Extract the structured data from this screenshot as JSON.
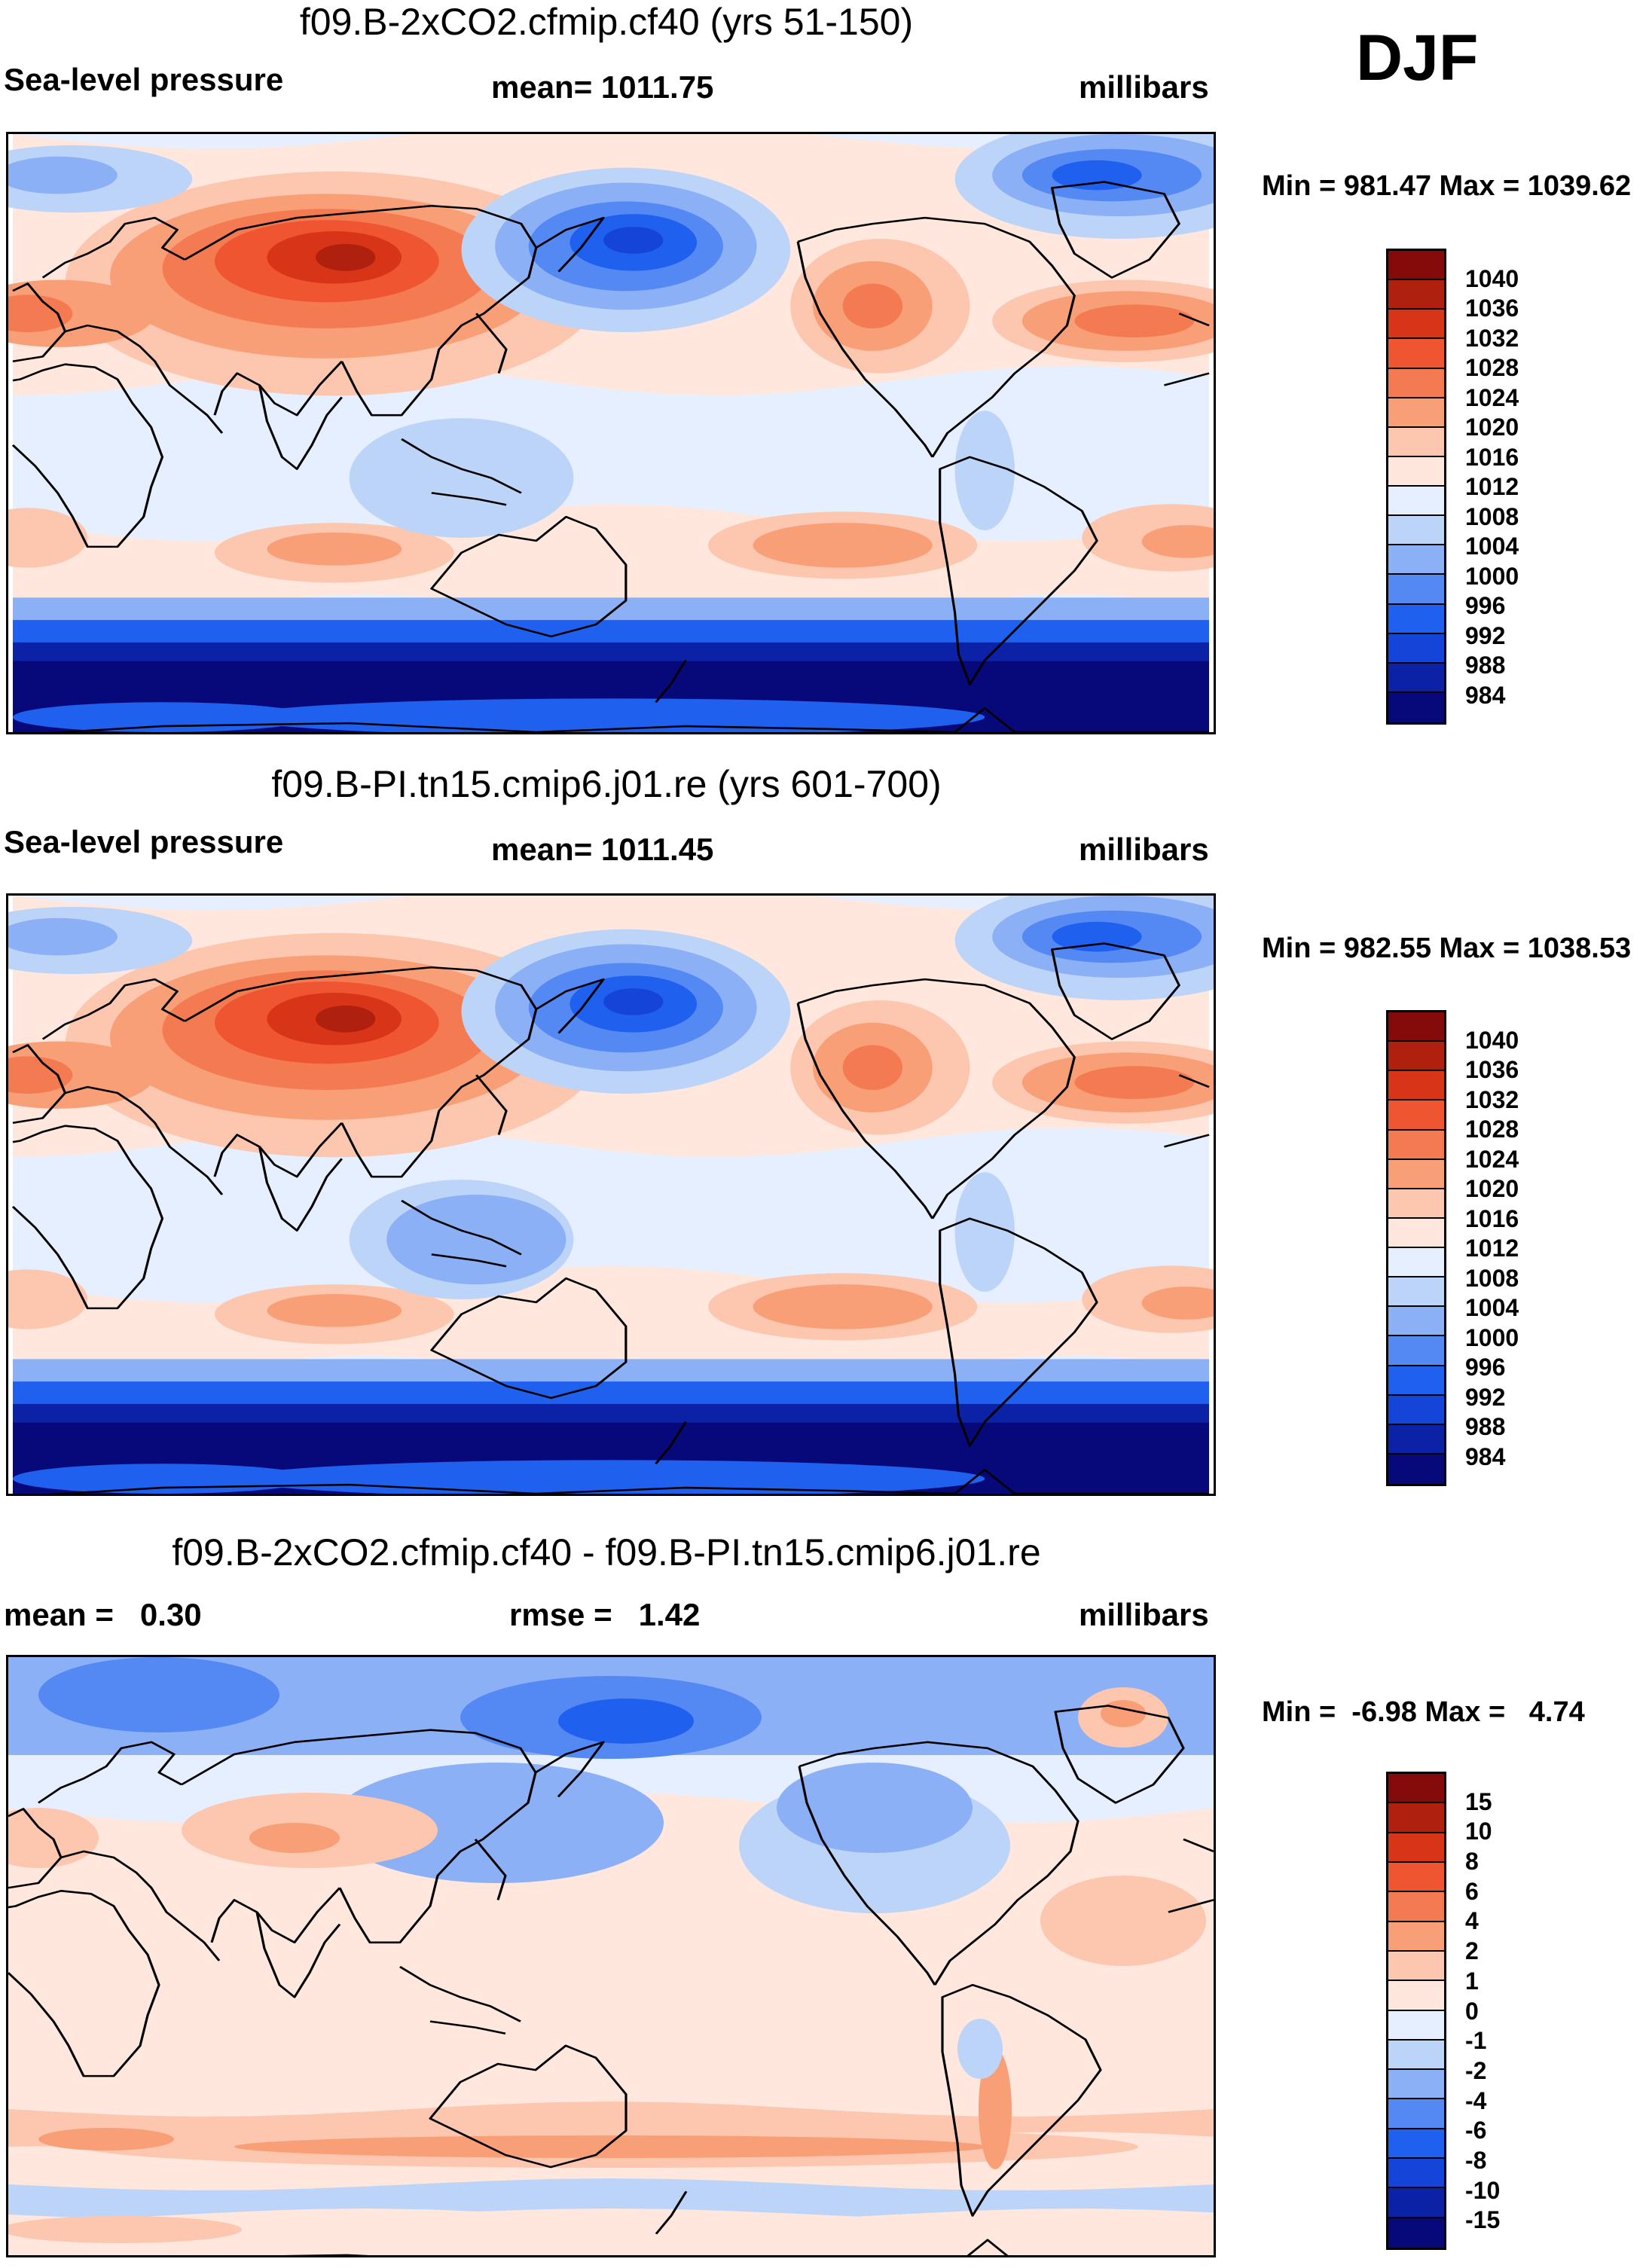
{
  "season": "DJF",
  "colors": {
    "abs": [
      "#07097a",
      "#0b22a6",
      "#1445d8",
      "#2060ef",
      "#5489f4",
      "#8cb0f6",
      "#bdd4f9",
      "#e6efff",
      "#ffe7dd",
      "#fdc6ae",
      "#f89f78",
      "#f47a52",
      "#ef5530",
      "#d83418",
      "#b0200f",
      "#850b0b"
    ],
    "diff": [
      "#07097a",
      "#0b22a6",
      "#1445d8",
      "#2060ef",
      "#5489f4",
      "#8cb0f6",
      "#bdd4f9",
      "#e6efff",
      "#ffe7dd",
      "#fdc6ae",
      "#f89f78",
      "#f47a52",
      "#ef5530",
      "#d83418",
      "#b0200f",
      "#850b0b"
    ],
    "coast": "#000000"
  },
  "panels": [
    {
      "title": "f09.B-2xCO2.cfmip.cf40 (yrs 51-150)",
      "left": "Sea-level pressure",
      "center": "mean= 1011.75",
      "right": "millibars",
      "minmax": "Min = 981.47 Max = 1039.62",
      "colorbar_labels": [
        "1040",
        "1036",
        "1032",
        "1028",
        "1024",
        "1020",
        "1016",
        "1012",
        "1008",
        "1004",
        "1000",
        "996",
        "992",
        "988",
        "984"
      ]
    },
    {
      "title": "f09.B-PI.tn15.cmip6.j01.re (yrs 601-700)",
      "left": "Sea-level pressure",
      "center": "mean= 1011.45",
      "right": "millibars",
      "minmax": "Min = 982.55 Max = 1038.53",
      "colorbar_labels": [
        "1040",
        "1036",
        "1032",
        "1028",
        "1024",
        "1020",
        "1016",
        "1012",
        "1008",
        "1004",
        "1000",
        "996",
        "992",
        "988",
        "984"
      ]
    },
    {
      "title": "f09.B-2xCO2.cfmip.cf40 - f09.B-PI.tn15.cmip6.j01.re",
      "left": "mean =   0.30",
      "center": "rmse =   1.42",
      "right": "millibars",
      "minmax": "Min =  -6.98 Max =   4.74",
      "colorbar_labels": [
        "15",
        "10",
        "8",
        "6",
        "4",
        "2",
        "1",
        "0",
        "-1",
        "-2",
        "-4",
        "-6",
        "-8",
        "-10",
        "-15"
      ]
    }
  ]
}
